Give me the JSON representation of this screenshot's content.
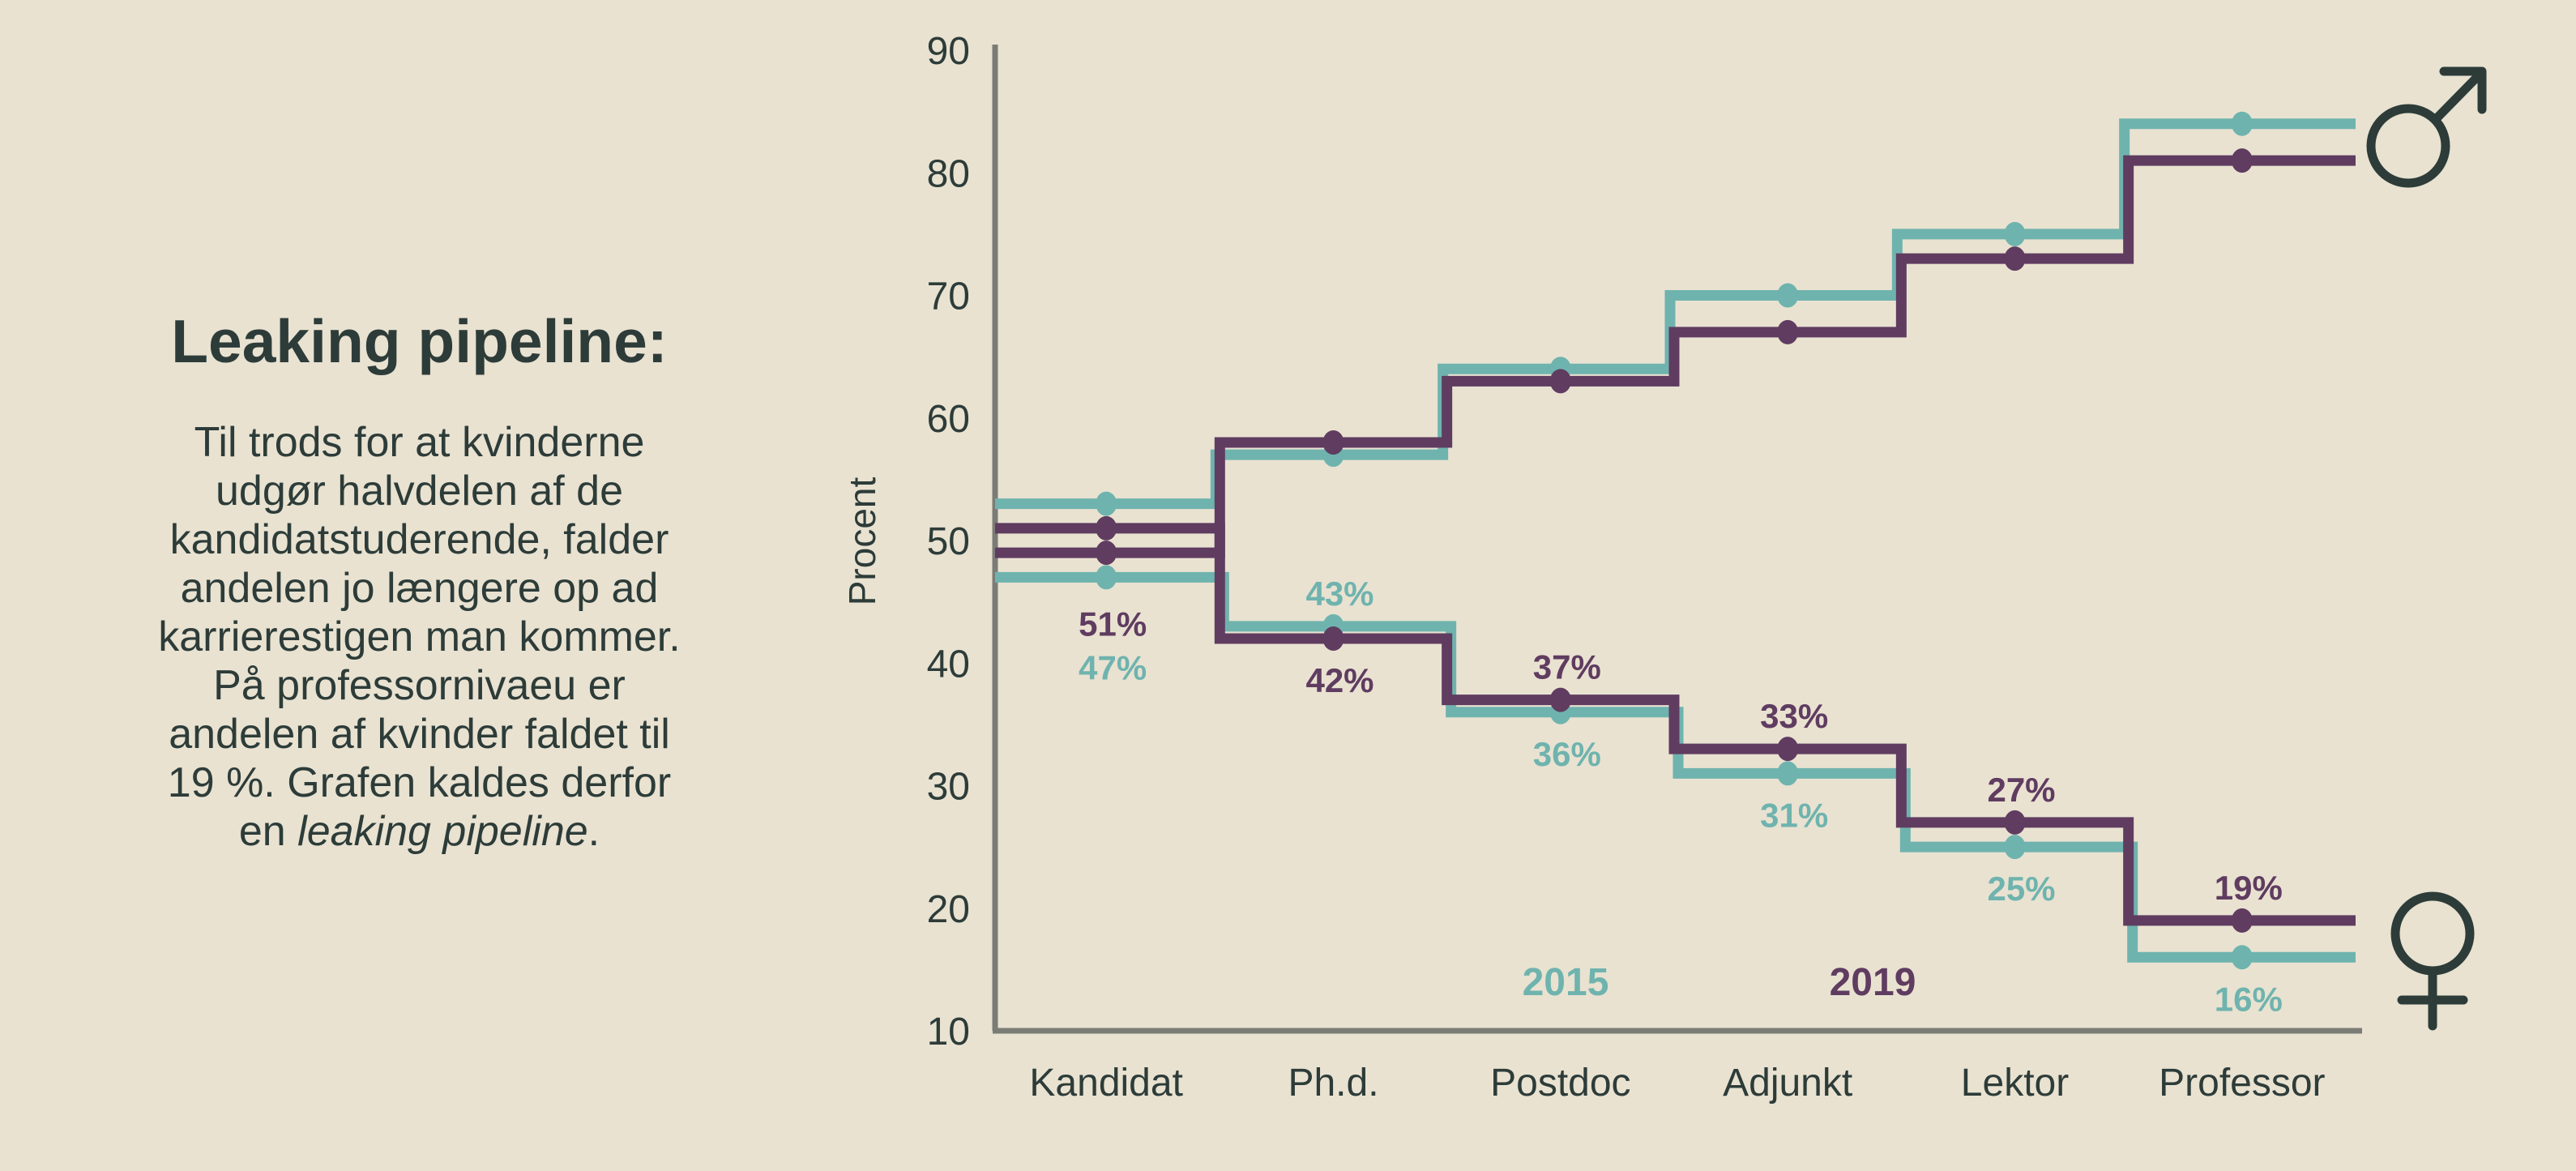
{
  "colors": {
    "background": "#e9e2d1",
    "teal": "#6fb3ae",
    "purple": "#5f3c60",
    "ink": "#2d3c39",
    "axis": "#7c7c76"
  },
  "intro": {
    "title": "Leaking pipeline:",
    "lines": [
      "Til trods for at kvinderne",
      "udgør halvdelen af de",
      "kandidatstuderende, falder",
      "andelen jo længere op ad",
      "karrierestigen man kommer.",
      "På professornivaeu er",
      "andelen af kvinder faldet til",
      "19 %. Grafen kaldes derfor"
    ],
    "last_line": {
      "prefix": "en ",
      "italic": "leaking pipeline",
      "suffix": "."
    }
  },
  "chart_data": {
    "type": "line",
    "variant": "step-center",
    "title": "",
    "xlabel": "",
    "ylabel": "Procent",
    "ylim": [
      10,
      90
    ],
    "yticks": [
      90,
      80,
      70,
      60,
      50,
      40,
      30,
      20,
      10
    ],
    "grid": false,
    "legend_position": "bottom-inside",
    "categories": [
      "Kandidat",
      "Ph.d.",
      "Postdoc",
      "Adjunkt",
      "Lektor",
      "Professor"
    ],
    "series": [
      {
        "name": "Kvinder 2015",
        "year": "2015",
        "group": "women",
        "color": "teal",
        "values": [
          47,
          43,
          36,
          31,
          25,
          16
        ]
      },
      {
        "name": "Mænd 2015",
        "year": "2015",
        "group": "men",
        "color": "teal",
        "values": [
          53,
          57,
          64,
          70,
          75,
          84
        ]
      },
      {
        "name": "Kvinder 2019",
        "year": "2019",
        "group": "women",
        "color": "purple",
        "values": [
          51,
          42,
          37,
          33,
          27,
          19
        ]
      },
      {
        "name": "Mænd 2019",
        "year": "2019",
        "group": "men",
        "color": "purple",
        "values": [
          49,
          58,
          63,
          67,
          73,
          81
        ]
      }
    ],
    "value_labels": [
      {
        "y2019": "51%",
        "y2015": "47%"
      },
      {
        "y2019": "42%",
        "y2015": "43%"
      },
      {
        "y2019": "37%",
        "y2015": "36%"
      },
      {
        "y2019": "33%",
        "y2015": "31%"
      },
      {
        "y2019": "27%",
        "y2015": "25%"
      },
      {
        "y2019": "19%",
        "y2015": "16%"
      }
    ],
    "legend": [
      {
        "label": "2015",
        "color": "teal"
      },
      {
        "label": "2019",
        "color": "purple"
      }
    ],
    "annotations": {
      "top_right_icon": "male-symbol",
      "bottom_right_icon": "female-symbol"
    }
  }
}
